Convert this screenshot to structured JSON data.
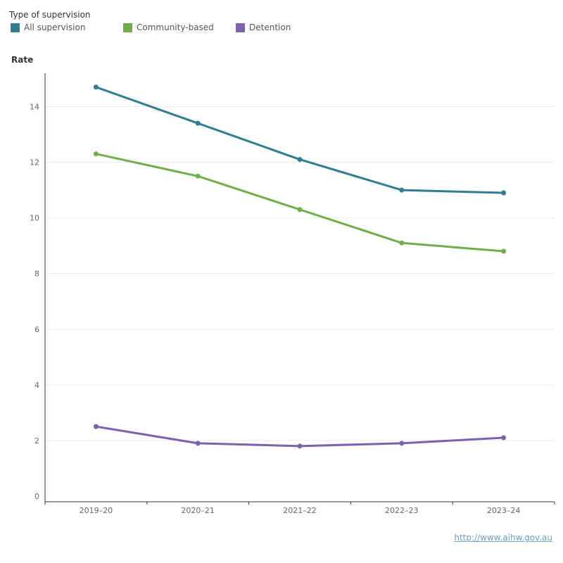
{
  "legend": {
    "title": "Type of supervision"
  },
  "source_link": "http://www.aihw.gov.au",
  "chart_data": {
    "type": "line",
    "title": "",
    "xlabel": "",
    "ylabel": "Rate",
    "categories": [
      "2019–20",
      "2020–21",
      "2021–22",
      "2022–23",
      "2023–24"
    ],
    "ylim": [
      0,
      15.2
    ],
    "yticks": [
      0,
      2,
      4,
      6,
      8,
      10,
      12,
      14
    ],
    "grid": true,
    "legend_position": "top-left",
    "series": [
      {
        "name": "All supervision",
        "color": "#2e7d91",
        "values": [
          14.7,
          13.4,
          12.1,
          11.0,
          10.9
        ]
      },
      {
        "name": "Community-based",
        "color": "#70ad47",
        "values": [
          12.3,
          11.5,
          10.3,
          9.1,
          8.8
        ]
      },
      {
        "name": "Detention",
        "color": "#7b62b0",
        "values": [
          2.5,
          1.9,
          1.8,
          1.9,
          2.1
        ]
      }
    ]
  }
}
